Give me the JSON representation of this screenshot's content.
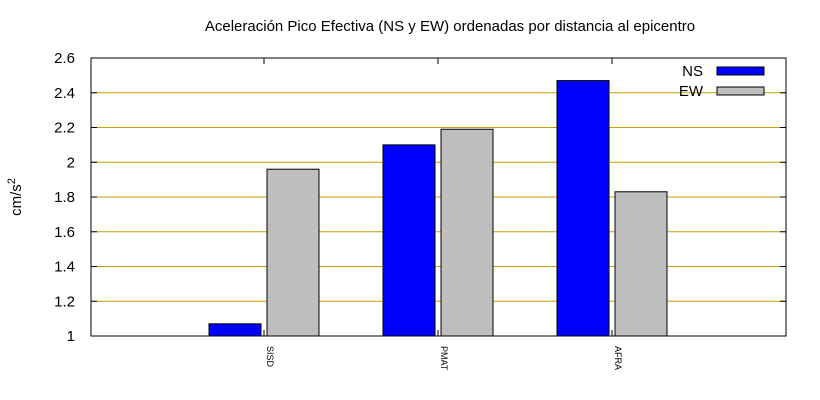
{
  "chart_data": {
    "type": "bar",
    "title": "Aceleración Pico Efectiva (NS y EW) ordenadas por distancia al epicentro",
    "xlabel": "",
    "ylabel": "cm/s",
    "ylabel_superscript": "2",
    "categories": [
      "SISD",
      "PMAT",
      "AFRA"
    ],
    "series": [
      {
        "name": "NS",
        "values": [
          1.07,
          2.1,
          2.47
        ],
        "color": "#0000ff"
      },
      {
        "name": "EW",
        "values": [
          1.96,
          2.19,
          1.83
        ],
        "color": "#bebebe"
      }
    ],
    "ylim": [
      1,
      2.6
    ],
    "yticks": [
      "1",
      "1.2",
      "1.4",
      "1.6",
      "1.8",
      "2",
      "2.2",
      "2.4",
      "2.6"
    ],
    "grid": true,
    "grid_color": "#c8a000",
    "legend_position": "top-right"
  }
}
